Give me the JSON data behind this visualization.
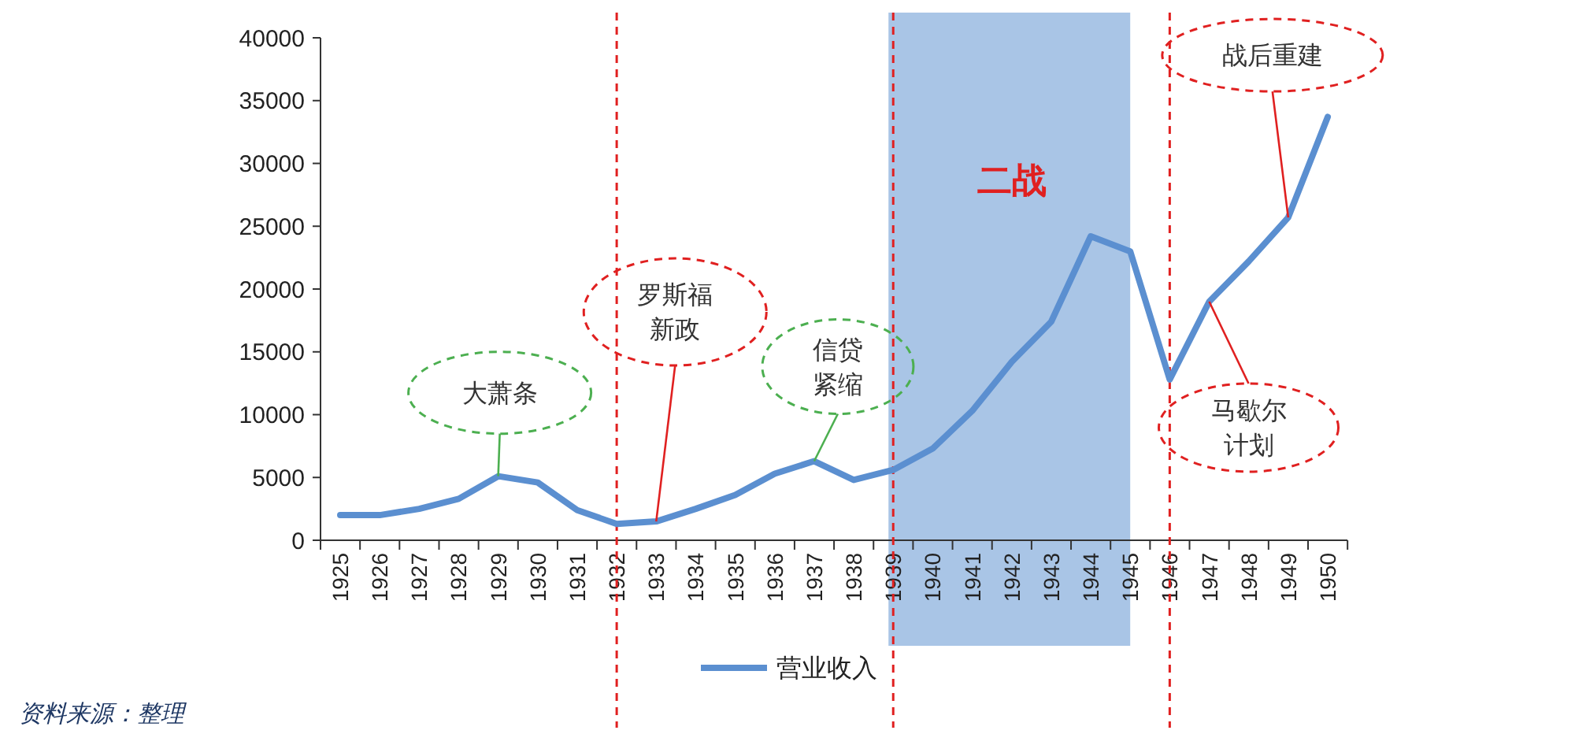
{
  "chart_data": {
    "type": "line",
    "categories": [
      "1925",
      "1926",
      "1927",
      "1928",
      "1929",
      "1930",
      "1931",
      "1932",
      "1933",
      "1934",
      "1935",
      "1936",
      "1937",
      "1938",
      "1939",
      "1940",
      "1941",
      "1942",
      "1943",
      "1944",
      "1945",
      "1946",
      "1947",
      "1948",
      "1949",
      "1950"
    ],
    "series": [
      {
        "name": "营业收入",
        "color": "#5b8fd0",
        "values": [
          2000,
          2000,
          2500,
          3300,
          5100,
          4600,
          2400,
          1300,
          1500,
          2500,
          3600,
          5300,
          6300,
          4800,
          5600,
          7300,
          10300,
          14200,
          17400,
          24200,
          23000,
          12800,
          19000,
          22200,
          25700,
          33700
        ]
      }
    ],
    "ylim": [
      0,
      40000
    ],
    "yticks": [
      0,
      5000,
      10000,
      15000,
      20000,
      25000,
      30000,
      35000,
      40000
    ],
    "ref_lines": [
      {
        "axis": "x",
        "value": "1932",
        "color": "#e02020",
        "line_style": "dashed"
      },
      {
        "axis": "x",
        "value": "1939",
        "color": "#e02020",
        "line_style": "dashed"
      },
      {
        "axis": "x",
        "value": "1946",
        "color": "#e02020",
        "line_style": "dashed"
      }
    ],
    "bands": [
      {
        "axis": "x",
        "from": "1939",
        "to": "1945",
        "label": "二战",
        "color": "#a9c5e6"
      }
    ],
    "annotations": [
      {
        "text": "大萧条",
        "x": "1929",
        "y": 5100
      },
      {
        "text": "罗斯福新政",
        "x": "1933",
        "y": 1500
      },
      {
        "text": "信贷紧缩",
        "x": "1937",
        "y": 6300
      },
      {
        "text": "马歇尔计划",
        "x": "1947",
        "y": 19000
      },
      {
        "text": "战后重建",
        "x": "1949",
        "y": 25700
      },
      "资料来源：整理"
    ],
    "legend": "bottom",
    "grid": false,
    "marker": "none",
    "line_style": "solid"
  }
}
